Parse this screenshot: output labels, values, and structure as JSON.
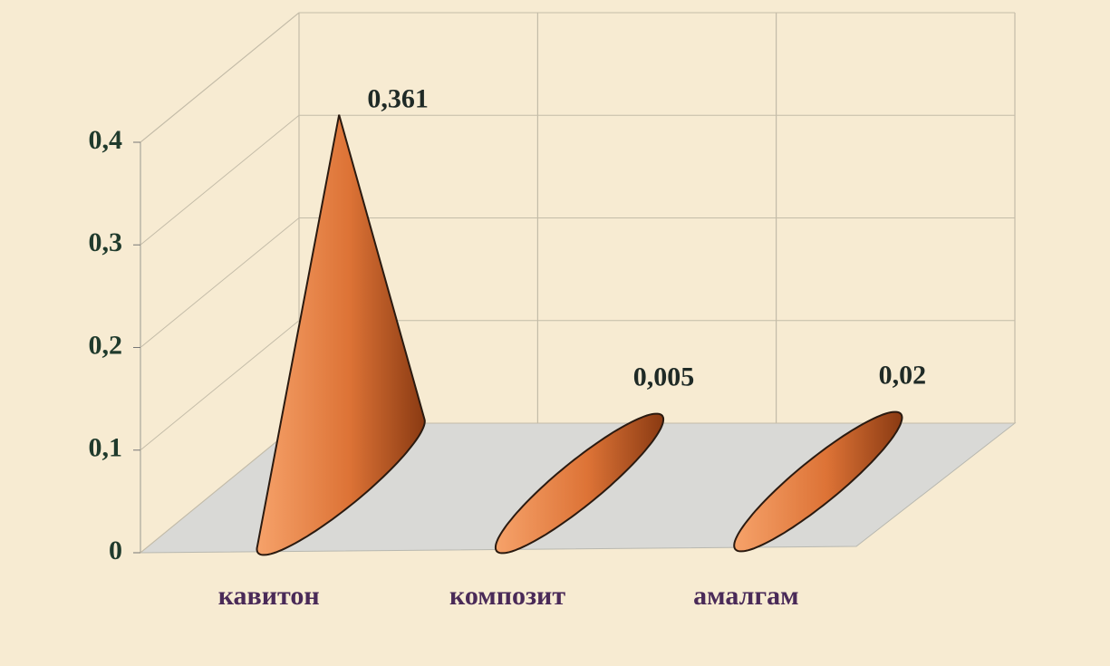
{
  "chart_data": {
    "type": "cone",
    "categories": [
      "кавитон",
      "композит",
      "амалгам"
    ],
    "values": [
      0.361,
      0.005,
      0.02
    ],
    "value_labels": [
      "0,361",
      "0,005",
      "0,02"
    ],
    "color": "#e07a3a",
    "ylim": [
      0,
      0.4
    ],
    "yticks": [
      0,
      {
        "value": 0.1,
        "label": "0,1"
      },
      {
        "value": 0.2,
        "label": "0,2"
      },
      {
        "value": 0.3,
        "label": "0,3"
      },
      {
        "value": 0.4,
        "label": "0,4"
      }
    ],
    "grid": true
  }
}
